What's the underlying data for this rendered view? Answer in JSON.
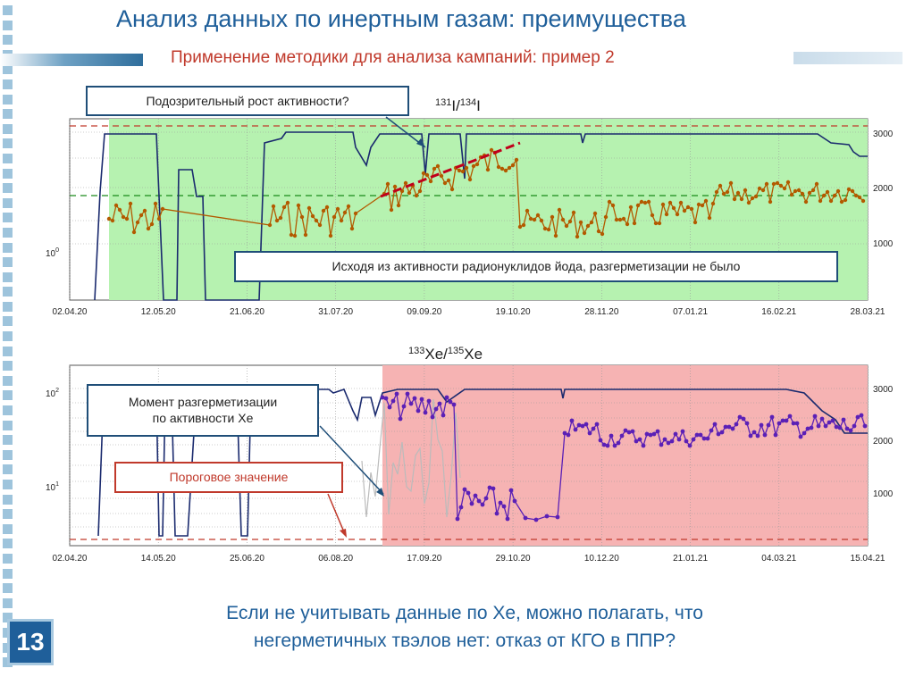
{
  "header": {
    "title": "Анализ данных по инертным газам: преимущества",
    "subtitle": "Применение методики для анализа кампаний: пример 2"
  },
  "chart1": {
    "title_sup": "131",
    "title_mid": "I/",
    "title_sup2": "134",
    "title_end": "I",
    "left_tick": "10",
    "left_tick_sup": "0",
    "right_ticks": [
      "3000",
      "2000",
      "1000"
    ],
    "x_ticks": [
      "02.04.20",
      "12.05.20",
      "21.06.20",
      "31.07.20",
      "09.09.20",
      "19.10.20",
      "28.11.20",
      "07.01.21",
      "16.02.21",
      "28.03.21"
    ],
    "callout_growth": "Подозрительный рост активности?",
    "callout_iodine": "Исходя из активности радионуклидов йода, разгерметизации не было"
  },
  "chart2": {
    "title_sup": "133",
    "title_mid": "Xe/",
    "title_sup2": "135",
    "title_end": "Xe",
    "left_ticks": [
      {
        "b": "10",
        "e": "2"
      },
      {
        "b": "10",
        "e": "1"
      }
    ],
    "right_ticks": [
      "3000",
      "2000",
      "1000"
    ],
    "x_ticks": [
      "02.04.20",
      "14.05.20",
      "25.06.20",
      "06.08.20",
      "17.09.20",
      "29.10.20",
      "10.12.20",
      "21.01.21",
      "04.03.21",
      "15.04.21"
    ],
    "callout_moment_line1": "Момент разгерметизации",
    "callout_moment_line2": "по активности Xe",
    "callout_threshold": "Пороговое значение"
  },
  "footer": {
    "page_number": "13",
    "text_line1": "Если не учитывать данные по Xe, можно полагать, что",
    "text_line2": "негерметичных твэлов нет: отказ от КГО в ППР?"
  },
  "colors": {
    "title_blue": "#1f5f9a",
    "subtitle_red": "#c0392b",
    "green_zone": "#b6f2b0",
    "red_zone": "#f6b3b3",
    "power_line": "#1a2a6e",
    "iodine_series": "#b35a00",
    "xenon_series": "#5b20b6",
    "dashed_green": "#1a8a1a",
    "dashed_red": "#c0392b"
  }
}
